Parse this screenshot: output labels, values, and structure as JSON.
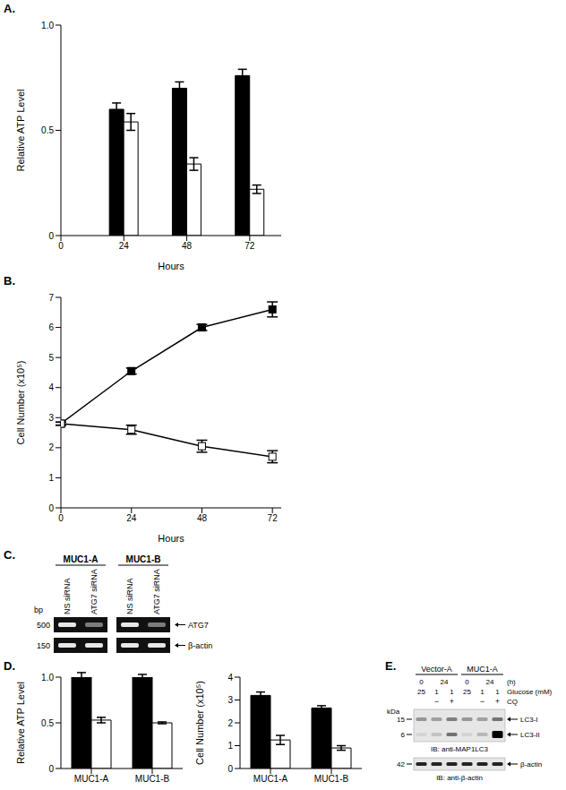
{
  "chart_data": [
    {
      "type": "bar",
      "title": "A.",
      "x": [
        24,
        48,
        72
      ],
      "xlim": [
        0,
        84
      ],
      "xticks": [
        0,
        24,
        48,
        72
      ],
      "xlabel": "Hours",
      "ylabel": "Relative ATP Level",
      "ylim": [
        0,
        1
      ],
      "yticks": [
        0,
        0.5,
        {
          "value": 1,
          "label": "1.0"
        }
      ],
      "series": [
        {
          "color": "#000000",
          "values": [
            0.6,
            0.7,
            0.76
          ],
          "errors": [
            0.03,
            0.03,
            0.03
          ]
        },
        {
          "color": "#ffffff",
          "values": [
            0.54,
            0.34,
            0.22
          ],
          "errors": [
            0.04,
            0.03,
            0.02
          ]
        }
      ]
    },
    {
      "type": "line",
      "title": "B.",
      "x": [
        0,
        24,
        48,
        72
      ],
      "xlim": [
        0,
        75
      ],
      "xticks": [
        0,
        24,
        48,
        72
      ],
      "xlabel": "Hours",
      "ylabel": "Cell Number (x10⁵)",
      "ylim": [
        0,
        7
      ],
      "yticks": [
        0,
        1,
        2,
        3,
        4,
        5,
        6,
        7
      ],
      "series": [
        {
          "color": "#000000",
          "marker": "filled_square",
          "values": [
            2.8,
            4.55,
            6.0,
            6.6
          ],
          "errors": [
            0.05,
            0.1,
            0.1,
            0.25
          ]
        },
        {
          "color": "#000000",
          "marker": "open_square",
          "values": [
            2.8,
            2.6,
            2.05,
            1.7
          ],
          "errors": [
            0.05,
            0.15,
            0.2,
            0.2
          ]
        }
      ]
    },
    {
      "type": "bar",
      "title": "D.",
      "categories": [
        "MUC1-A",
        "MUC1-B"
      ],
      "ylabel": "Relative ATP Level",
      "ylim": [
        0,
        1
      ],
      "yticks": [
        0,
        0.5,
        {
          "value": 1,
          "label": "1.0"
        }
      ],
      "series": [
        {
          "color": "#000000",
          "values": [
            1.0,
            1.0
          ],
          "errors": [
            0.05,
            0.03
          ]
        },
        {
          "color": "#ffffff",
          "values": [
            0.53,
            0.5
          ],
          "errors": [
            0.03,
            0.01
          ]
        }
      ]
    },
    {
      "type": "bar",
      "categories": [
        "MUC1-A",
        "MUC1-B"
      ],
      "ylabel": "Cell Number (x10⁵)",
      "ylim": [
        0,
        4
      ],
      "yticks": [
        0,
        1,
        2,
        3,
        4
      ],
      "series": [
        {
          "color": "#000000",
          "values": [
            3.2,
            2.65
          ],
          "errors": [
            0.15,
            0.1
          ]
        },
        {
          "color": "#ffffff",
          "values": [
            1.25,
            0.9
          ],
          "errors": [
            0.2,
            0.1
          ]
        }
      ]
    }
  ],
  "panels": {
    "C": {
      "title": "C.",
      "groups": [
        "MUC1-A",
        "MUC1-B"
      ],
      "lanes": [
        "NS siRNA",
        "ATG7 siRNA",
        "NS siRNA",
        "ATG7 siRNA"
      ],
      "unit": "bp",
      "blots": [
        {
          "marker": 500,
          "band": "ATG7"
        },
        {
          "marker": 150,
          "band": "β-actin"
        }
      ]
    },
    "E": {
      "title": "E.",
      "groups": [
        "Vector-A",
        "MUC1-A"
      ],
      "time_label": "(h)",
      "time": [
        0,
        24,
        0,
        24
      ],
      "glucose_label": "Glucose (mM)",
      "glucose": [
        25,
        1,
        1,
        25,
        1,
        1
      ],
      "cq_label": "CQ",
      "cq": [
        null,
        "−",
        "+",
        null,
        "−",
        "+"
      ],
      "kda_label": "kDa",
      "blots": [
        {
          "markers": [
            15,
            6
          ],
          "bands": [
            "LC3-I",
            "LC3-II"
          ],
          "ib": "IB: anti-MAP1LC3"
        },
        {
          "markers": [
            42
          ],
          "bands": [
            "β-actin"
          ],
          "ib": "IB: anti-β-actin"
        }
      ]
    }
  }
}
